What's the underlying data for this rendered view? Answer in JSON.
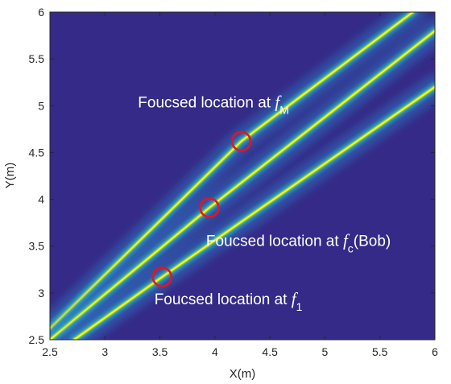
{
  "chart_data": {
    "type": "heatmap",
    "title": "",
    "xlabel": "X(m)",
    "ylabel": "Y(m)",
    "xlim": [
      2.5,
      6
    ],
    "ylim": [
      2.5,
      6
    ],
    "xticks": [
      "2.5",
      "3",
      "3.5",
      "4",
      "4.5",
      "5",
      "5.5",
      "6"
    ],
    "yticks": [
      "2.5",
      "3",
      "3.5",
      "4",
      "4.5",
      "5",
      "5.5",
      "6"
    ],
    "colormap": "parula",
    "colors": {
      "background": "#352a87",
      "peak": "#f9fb0e",
      "marker": "#e8141d",
      "annotation_text": "#ffffff"
    },
    "beams": [
      {
        "name": "f_M",
        "points": [
          [
            2.5,
            2.62
          ],
          [
            4.24,
            4.62
          ],
          [
            5.8,
            6.0
          ]
        ]
      },
      {
        "name": "f_c",
        "points": [
          [
            2.5,
            2.5
          ],
          [
            3.95,
            3.91
          ],
          [
            6.0,
            5.8
          ]
        ]
      },
      {
        "name": "f_1",
        "points": [
          [
            2.72,
            2.5
          ],
          [
            3.52,
            3.17
          ],
          [
            6.0,
            5.2
          ]
        ]
      }
    ],
    "focus_points": [
      {
        "x": 4.24,
        "y": 4.62
      },
      {
        "x": 3.95,
        "y": 3.91
      },
      {
        "x": 3.52,
        "y": 3.17
      }
    ],
    "annotations": [
      {
        "prefix": "Foucsed location at ",
        "math": "f",
        "sub": "M",
        "suffix": "",
        "x": 3.3,
        "y": 4.98
      },
      {
        "prefix": "Foucsed location at ",
        "math": "f",
        "sub": "c",
        "suffix": "(Bob)",
        "x": 3.92,
        "y": 3.5
      },
      {
        "prefix": "Foucsed location at ",
        "math": "f",
        "sub": "1",
        "suffix": "",
        "x": 3.45,
        "y": 2.88
      }
    ]
  }
}
